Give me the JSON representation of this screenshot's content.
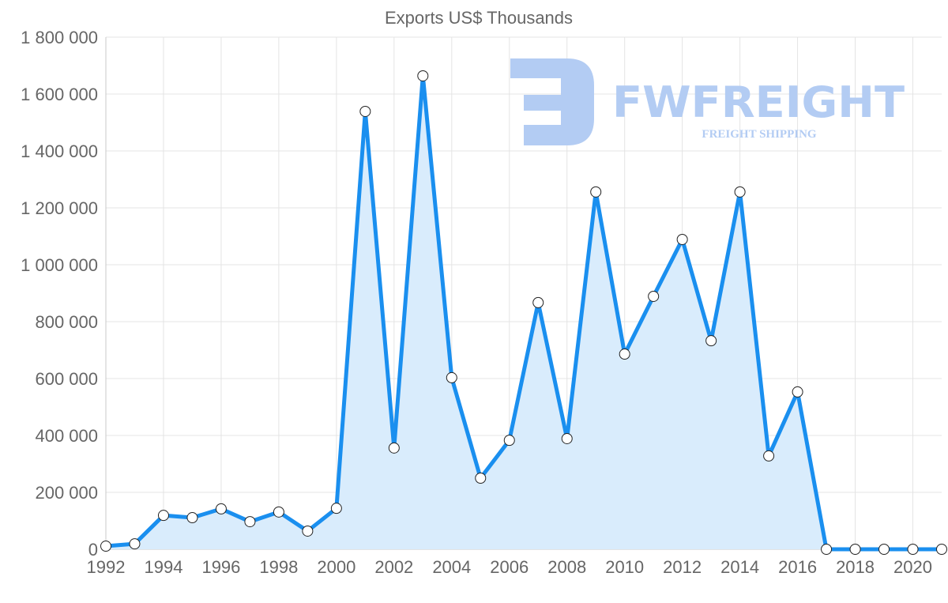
{
  "chart_data": {
    "type": "line",
    "title": "Exports US$ Thousands",
    "xlabel": "",
    "ylabel": "",
    "x": [
      1992,
      1993,
      1994,
      1995,
      1996,
      1997,
      1998,
      1999,
      2000,
      2001,
      2002,
      2003,
      2004,
      2005,
      2006,
      2007,
      2008,
      2009,
      2010,
      2011,
      2012,
      2013,
      2014,
      2015,
      2016,
      2017,
      2018,
      2019,
      2020,
      2021
    ],
    "series": [
      {
        "name": "Exports US$ Thousands",
        "values": [
          11000,
          19000,
          119000,
          111000,
          142000,
          97000,
          131000,
          64000,
          144000,
          1539000,
          356000,
          1664000,
          603000,
          250000,
          383000,
          867000,
          389000,
          1256000,
          686000,
          889000,
          1089000,
          733000,
          1256000,
          328000,
          553000,
          0,
          0,
          0,
          0,
          0
        ],
        "color": "#1a8fef",
        "fill": "#d9ecfc"
      }
    ],
    "ylim": [
      0,
      1800000
    ],
    "xlim": [
      1992,
      2021
    ],
    "y_ticks": [
      "0",
      "200 000",
      "400 000",
      "600 000",
      "800 000",
      "1 000 000",
      "1 200 000",
      "1 400 000",
      "1 600 000",
      "1 800 000"
    ],
    "x_ticks": [
      "1992",
      "1994",
      "1996",
      "1998",
      "2000",
      "2002",
      "2004",
      "2006",
      "2008",
      "2010",
      "2012",
      "2014",
      "2016",
      "2018",
      "2020"
    ],
    "grid": true,
    "legend": "none"
  },
  "watermark": {
    "brand": "FWFREIGHT",
    "tagline": "FREIGHT SHIPPING",
    "color": "#b3ccf3"
  }
}
